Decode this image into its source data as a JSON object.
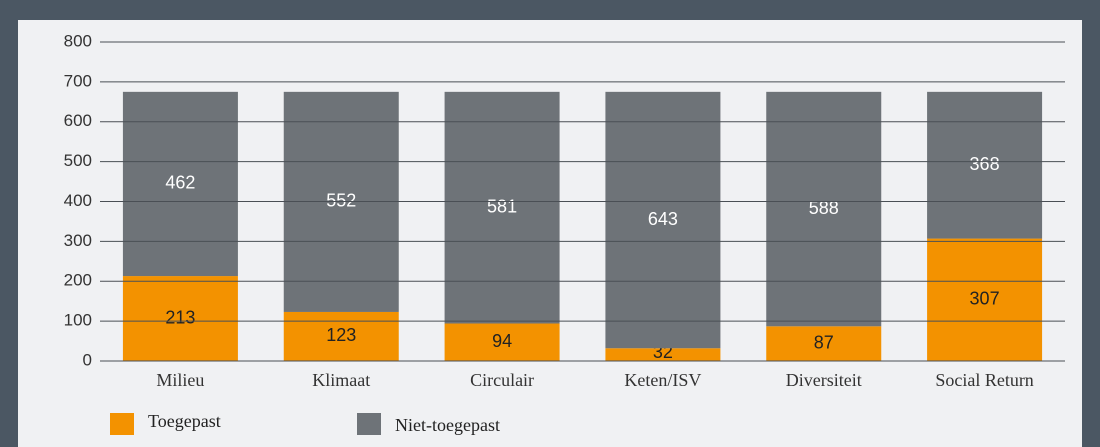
{
  "chart_data": {
    "type": "stacked_bar",
    "categories": [
      "Milieu",
      "Klimaat",
      "Circulair",
      "Keten/ISV",
      "Diversiteit",
      "Social Return"
    ],
    "series": [
      {
        "name": "Toegepast",
        "color": "#f39200",
        "values": [
          213,
          123,
          94,
          32,
          87,
          307
        ]
      },
      {
        "name": "Niet-toegepast",
        "color": "#6e7378",
        "values": [
          462,
          552,
          581,
          643,
          588,
          368
        ]
      }
    ],
    "ylim": [
      0,
      800
    ],
    "yticks": [
      0,
      100,
      200,
      300,
      400,
      500,
      600,
      700,
      800
    ],
    "grid": true
  }
}
